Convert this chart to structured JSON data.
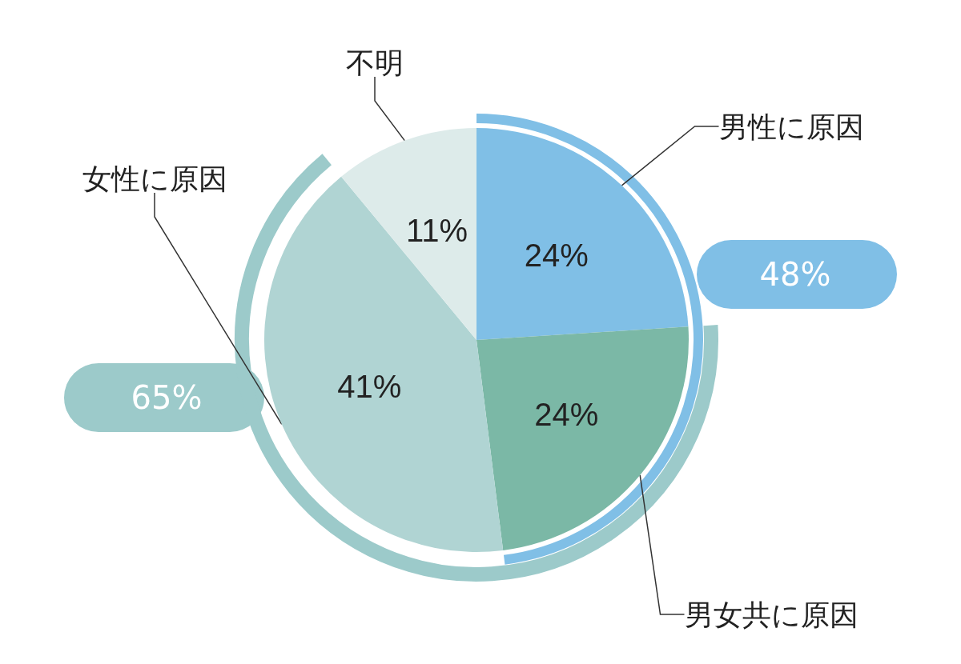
{
  "chart_data": {
    "type": "pie",
    "categories": [
      "男性に原因",
      "男女共に原因",
      "女性に原因",
      "不明"
    ],
    "values": [
      24,
      24,
      41,
      11
    ],
    "value_labels": [
      "24%",
      "24%",
      "41%",
      "11%"
    ],
    "colors": [
      "#80bfe6",
      "#7bb8a6",
      "#b0d4d3",
      "#ddebea"
    ],
    "annotations": [
      "48%",
      "65%"
    ],
    "legend": false
  }
}
